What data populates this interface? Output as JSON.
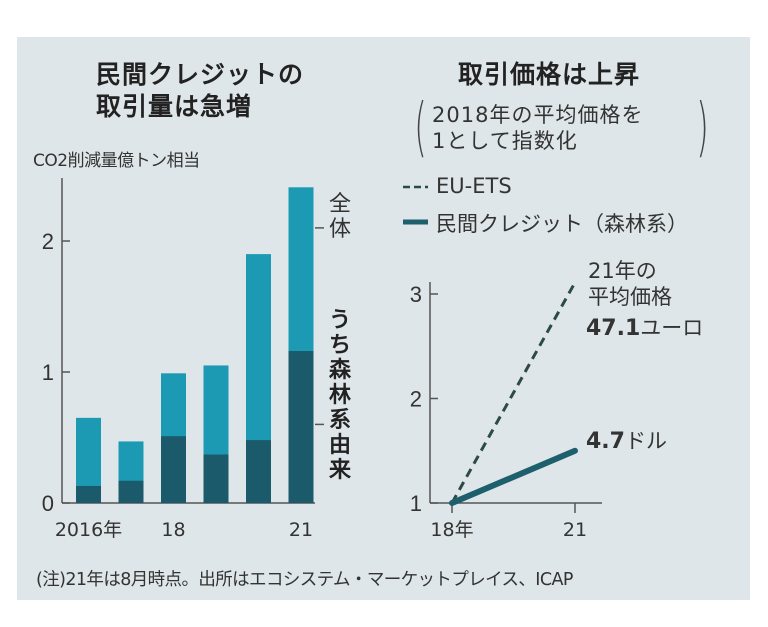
{
  "left_panel": {
    "title_line1": "民間クレジットの",
    "title_line2": "取引量は急増",
    "unit_label": "CO2削減量億トン相当",
    "label_total": "全体",
    "label_forest": "うち森林系由来"
  },
  "right_panel": {
    "title": "取引価格は上昇",
    "subtitle_line1": "2018年の平均価格を",
    "subtitle_line2": "1として指数化",
    "legend": [
      {
        "name": "EU-ETS",
        "style": "dashed"
      },
      {
        "name": "民間クレジット（森林系）",
        "style": "solid"
      }
    ],
    "annotation_eu_line1": "21年の",
    "annotation_eu_line2": "平均価格",
    "annotation_eu_value": "47.1",
    "annotation_eu_unit": "ユーロ",
    "annotation_credit_value": "4.7",
    "annotation_credit_unit": "ドル"
  },
  "footnote": "(注)21年は8月時点。出所はエコシステム・マーケットプレイス、ICAP",
  "colors": {
    "background": "#dfe6e9",
    "total_bar": "#1c9ab4",
    "forest_bar": "#1b5a6a",
    "eu_ets_line": "#2c4a48",
    "credit_line": "#1e5f6e",
    "axis": "#555555"
  },
  "chart_data": [
    {
      "type": "bar",
      "title": "民間クレジットの取引量は急増",
      "ylabel": "CO2削減量億トン相当",
      "xlabel": "",
      "categories": [
        "2016",
        "2017",
        "2018",
        "2019",
        "2020",
        "2021"
      ],
      "tick_labels_x": [
        {
          "category": "2016",
          "label": "2016年"
        },
        {
          "category": "2018",
          "label": "18"
        },
        {
          "category": "2021",
          "label": "21"
        }
      ],
      "series": [
        {
          "name": "全体",
          "values": [
            0.65,
            0.47,
            0.99,
            1.05,
            1.9,
            2.41
          ]
        },
        {
          "name": "うち森林系由来",
          "values": [
            0.13,
            0.17,
            0.51,
            0.37,
            0.48,
            1.16
          ]
        }
      ],
      "overlay": true,
      "yticks": [
        0,
        1,
        2
      ],
      "ylim": [
        0,
        2.5
      ],
      "grid": false
    },
    {
      "type": "line",
      "title": "取引価格は上昇",
      "subtitle": "2018年の平均価格を1として指数化",
      "x": [
        "2018",
        "2021"
      ],
      "tick_labels_x": [
        "18年",
        "21"
      ],
      "series": [
        {
          "name": "EU-ETS",
          "values": [
            1,
            3.11
          ],
          "style": "dashed",
          "end_label": "47.1ユーロ"
        },
        {
          "name": "民間クレジット（森林系）",
          "values": [
            1,
            1.5
          ],
          "style": "solid",
          "end_label": "4.7ドル"
        }
      ],
      "yticks": [
        1,
        2,
        3
      ],
      "ylim": [
        1,
        3.2
      ],
      "legend": "top",
      "grid": false
    }
  ]
}
